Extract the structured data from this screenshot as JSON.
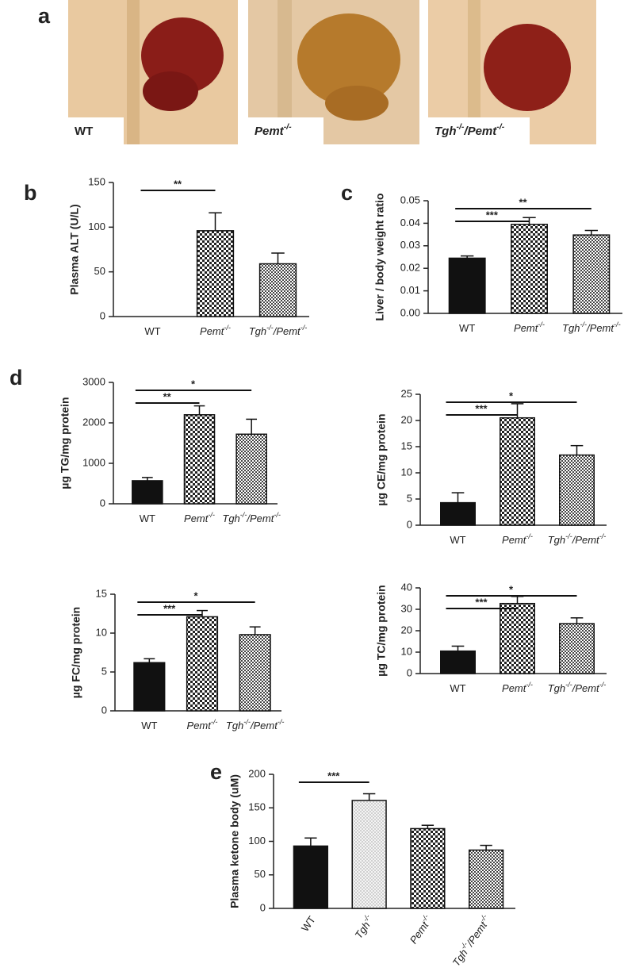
{
  "photos": {
    "panel": "a",
    "labels": [
      "WT",
      "Pemt-/-",
      "Tgh-/-/Pemt-/-"
    ]
  },
  "chart_data": [
    {
      "type": "bar",
      "panel": "b",
      "y_label": "Plasma ALT (U/L)",
      "categories": [
        "WT",
        "Pemt-/-",
        "Tgh-/-/Pemt-/-"
      ],
      "values": [
        0,
        96,
        59
      ],
      "errors": [
        0,
        20,
        12
      ],
      "fills": [
        "black",
        "checker",
        "fine-checker"
      ],
      "ylim": [
        0,
        150
      ],
      "yticks": [
        0,
        50,
        100,
        150
      ],
      "significance": [
        {
          "from": "WT",
          "to": "Pemt-/-",
          "label": "**"
        }
      ]
    },
    {
      "type": "bar",
      "panel": "c",
      "y_label": "Liver / body weight ratio",
      "categories": [
        "WT",
        "Pemt-/-",
        "Tgh-/-/Pemt-/-"
      ],
      "values": [
        0.0245,
        0.0395,
        0.0348
      ],
      "errors": [
        0.001,
        0.003,
        0.002
      ],
      "fills": [
        "black",
        "checker",
        "fine-checker"
      ],
      "ylim": [
        0,
        0.05
      ],
      "yticks": [
        {
          "value": 0,
          "label": "0.00"
        },
        {
          "value": 0.01,
          "label": "0.01"
        },
        {
          "value": 0.02,
          "label": "0.02"
        },
        {
          "value": 0.03,
          "label": "0.03"
        },
        {
          "value": 0.04,
          "label": "0.04"
        },
        {
          "value": 0.05,
          "label": "0.05"
        }
      ],
      "significance": [
        {
          "from": "WT",
          "to": "Pemt-/-",
          "label": "***"
        },
        {
          "from": "WT",
          "to": "Tgh-/-/Pemt-/-",
          "label": "**"
        }
      ]
    },
    {
      "type": "bar",
      "panel": "d",
      "y_label": "µg TG/mg protein",
      "categories": [
        "WT",
        "Pemt-/-",
        "Tgh-/-/Pemt-/-"
      ],
      "values": [
        570,
        2200,
        1720
      ],
      "errors": [
        80,
        220,
        370
      ],
      "fills": [
        "black",
        "checker",
        "fine-checker"
      ],
      "ylim": [
        0,
        3000
      ],
      "yticks": [
        0,
        1000,
        2000,
        3000
      ],
      "significance": [
        {
          "from": "WT",
          "to": "Pemt-/-",
          "label": "**"
        },
        {
          "from": "WT",
          "to": "Tgh-/-/Pemt-/-",
          "label": "*"
        }
      ]
    },
    {
      "type": "bar",
      "y_label": "µg CE/mg protein",
      "categories": [
        "WT",
        "Pemt-/-",
        "Tgh-/-/Pemt-/-"
      ],
      "values": [
        4.3,
        20.5,
        13.4
      ],
      "errors": [
        1.9,
        2.7,
        1.8
      ],
      "fills": [
        "black",
        "checker",
        "fine-checker"
      ],
      "ylim": [
        0,
        25
      ],
      "yticks": [
        0,
        5,
        10,
        15,
        20,
        25
      ],
      "significance": [
        {
          "from": "WT",
          "to": "Pemt-/-",
          "label": "***"
        },
        {
          "from": "WT",
          "to": "Tgh-/-/Pemt-/-",
          "label": "*"
        }
      ]
    },
    {
      "type": "bar",
      "y_label": "µg FC/mg protein",
      "categories": [
        "WT",
        "Pemt-/-",
        "Tgh-/-/Pemt-/-"
      ],
      "values": [
        6.2,
        12.1,
        9.8
      ],
      "errors": [
        0.5,
        0.8,
        1.0
      ],
      "fills": [
        "black",
        "checker",
        "fine-checker"
      ],
      "ylim": [
        0,
        15
      ],
      "yticks": [
        0,
        5,
        10,
        15
      ],
      "significance": [
        {
          "from": "WT",
          "to": "Pemt-/-",
          "label": "***"
        },
        {
          "from": "WT",
          "to": "Tgh-/-/Pemt-/-",
          "label": "*"
        }
      ]
    },
    {
      "type": "bar",
      "y_label": "µg TC/mg protein",
      "categories": [
        "WT",
        "Pemt-/-",
        "Tgh-/-/Pemt-/-"
      ],
      "values": [
        10.5,
        32.7,
        23.3
      ],
      "errors": [
        2.3,
        3.3,
        2.7
      ],
      "fills": [
        "black",
        "checker",
        "fine-checker"
      ],
      "ylim": [
        0,
        40
      ],
      "yticks": [
        0,
        10,
        20,
        30,
        40
      ],
      "significance": [
        {
          "from": "WT",
          "to": "Pemt-/-",
          "label": "***"
        },
        {
          "from": "WT",
          "to": "Tgh-/-/Pemt-/-",
          "label": "*"
        }
      ]
    },
    {
      "type": "bar",
      "panel": "e",
      "y_label": "Plasma ketone body (uM)",
      "categories": [
        "WT",
        "Tgh-/-",
        "Pemt-/-",
        "Tgh-/-/Pemt-/-"
      ],
      "values": [
        93,
        161,
        119,
        87
      ],
      "errors": [
        12,
        10,
        5,
        7
      ],
      "fills": [
        "black",
        "dots",
        "checker",
        "fine-checker"
      ],
      "ylim": [
        0,
        200
      ],
      "yticks": [
        0,
        50,
        100,
        150,
        200
      ],
      "rotate_xlabels": true,
      "significance": [
        {
          "from": "WT",
          "to": "Tgh-/-",
          "label": "***"
        }
      ]
    }
  ]
}
